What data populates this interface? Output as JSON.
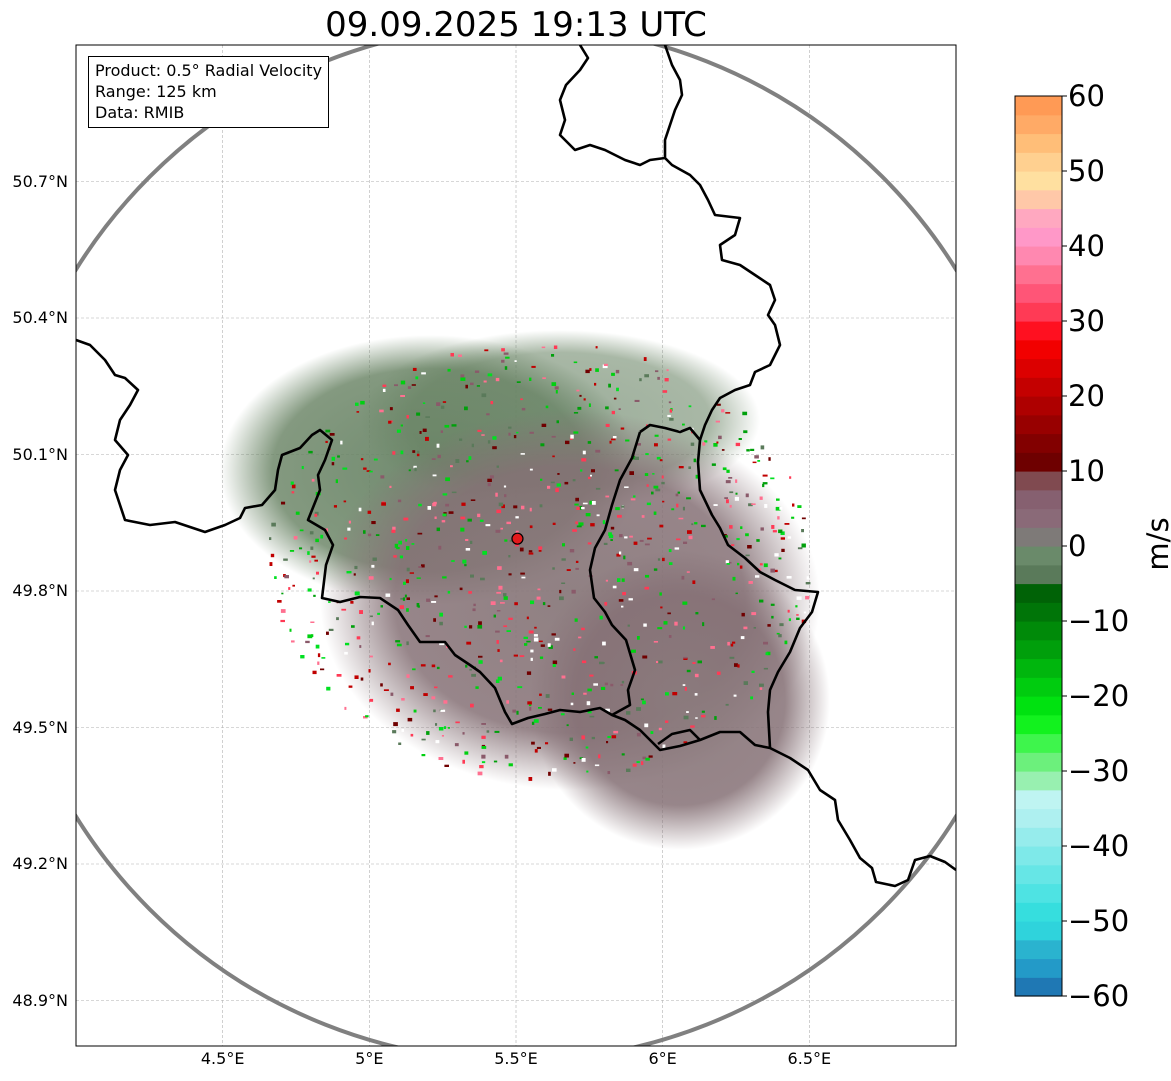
{
  "title": "09.09.2025 19:13 UTC",
  "info": {
    "product": "Product: 0.5° Radial Velocity",
    "range": "Range: 125 km",
    "source": "Data: RMIB"
  },
  "lat_ticks": [
    {
      "value": 50.7,
      "label": "50.7°N"
    },
    {
      "value": 50.4,
      "label": "50.4°N"
    },
    {
      "value": 50.1,
      "label": "50.1°N"
    },
    {
      "value": 49.8,
      "label": "49.8°N"
    },
    {
      "value": 49.5,
      "label": "49.5°N"
    },
    {
      "value": 49.2,
      "label": "49.2°N"
    },
    {
      "value": 48.9,
      "label": "48.9°N"
    }
  ],
  "lon_ticks": [
    {
      "value": 4.5,
      "label": "4.5°E"
    },
    {
      "value": 5.0,
      "label": "5°E"
    },
    {
      "value": 5.5,
      "label": "5.5°E"
    },
    {
      "value": 6.0,
      "label": "6°E"
    },
    {
      "value": 6.5,
      "label": "6.5°E"
    }
  ],
  "map_extent": {
    "lon_min": 4.0,
    "lon_max": 7.0,
    "lat_min": 48.8,
    "lat_max": 51.0
  },
  "radar_site": {
    "lon": 5.505,
    "lat": 49.915,
    "color": "#e31a1c"
  },
  "colorbar": {
    "unit": "m/s",
    "min": -60,
    "max": 60,
    "ticks": [
      {
        "value": 60,
        "label": "60"
      },
      {
        "value": 50,
        "label": "50"
      },
      {
        "value": 40,
        "label": "40"
      },
      {
        "value": 30,
        "label": "30"
      },
      {
        "value": 20,
        "label": "20"
      },
      {
        "value": 10,
        "label": "10"
      },
      {
        "value": 0,
        "label": "0"
      },
      {
        "value": -10,
        "label": "−10"
      },
      {
        "value": -20,
        "label": "−20"
      },
      {
        "value": -30,
        "label": "−30"
      },
      {
        "value": -40,
        "label": "−40"
      },
      {
        "value": -50,
        "label": "−50"
      },
      {
        "value": -60,
        "label": "−60"
      }
    ],
    "colors": [
      "#1f78b4",
      "#239ac8",
      "#2ab3cf",
      "#2fd3dc",
      "#36dede",
      "#4ee3e3",
      "#66e6e6",
      "#7ee9e9",
      "#96ecec",
      "#aef0f0",
      "#bff4f2",
      "#98f0b0",
      "#6cf07c",
      "#3ef54c",
      "#12f21e",
      "#00e210",
      "#00cc0f",
      "#00b60d",
      "#009f0b",
      "#008a09",
      "#007508",
      "#006206",
      "#5a7a5a",
      "#6a8a6a",
      "#7e7a78",
      "#8a6a78",
      "#866070",
      "#804a50",
      "#6e0000",
      "#820000",
      "#980000",
      "#ae0000",
      "#c40000",
      "#dc0000",
      "#f20000",
      "#ff1020",
      "#ff3a55",
      "#ff5577",
      "#ff7090",
      "#ff88b0",
      "#ff98c8",
      "#ffa8c0",
      "#ffc8a8",
      "#ffe0a0",
      "#ffd090",
      "#ffbe78",
      "#ffaa66",
      "#ff9a55"
    ]
  }
}
